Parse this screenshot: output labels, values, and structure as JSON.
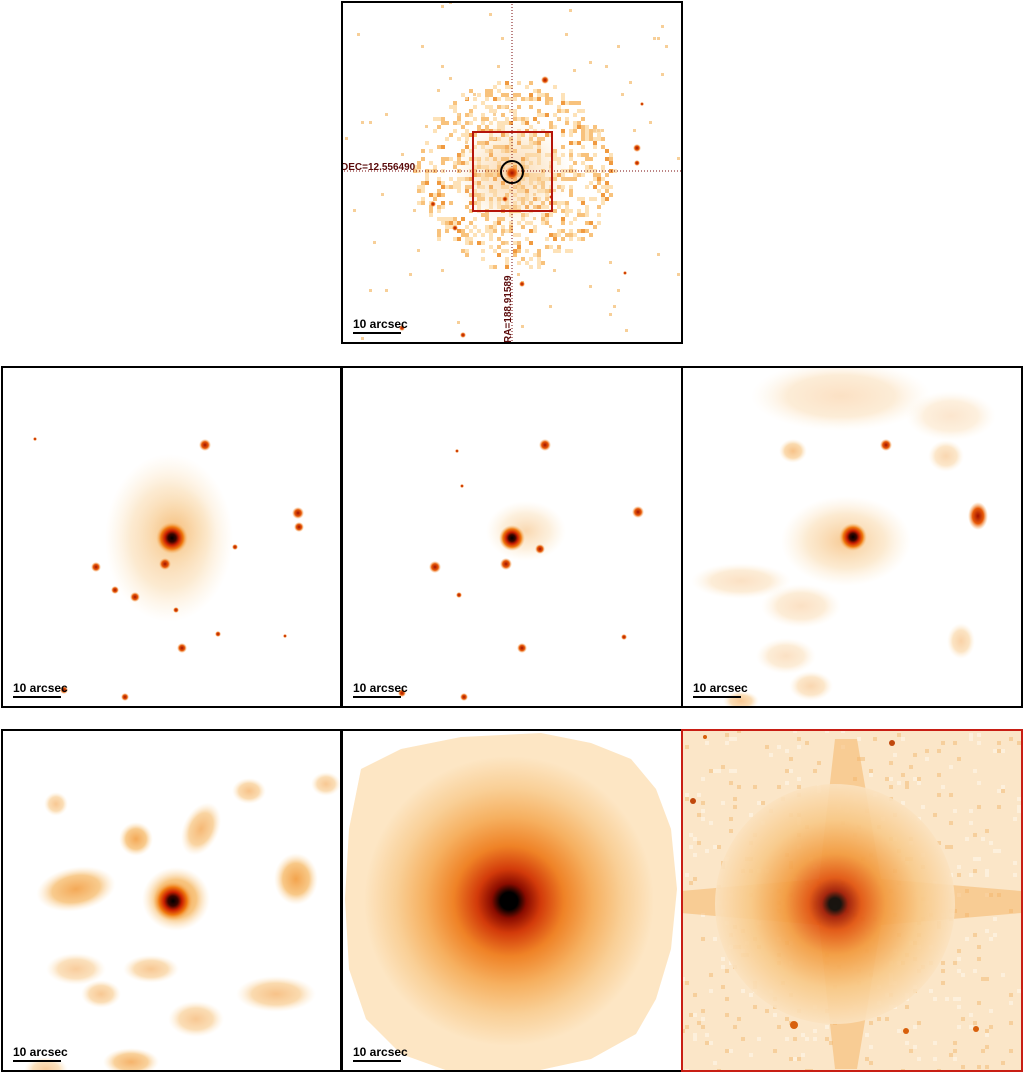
{
  "top_panel": {
    "dec_label": "DEC=12.556490",
    "ra_label": "RA=188.91589",
    "scale_label": "10 arcsec"
  },
  "row2": {
    "panels": [
      {
        "scale_label": "10 arcsec"
      },
      {
        "scale_label": "10 arcsec"
      },
      {
        "scale_label": "10 arcsec"
      }
    ]
  },
  "row3": {
    "panels": [
      {
        "scale_label": "10 arcsec"
      },
      {
        "scale_label": "10 arcsec"
      },
      {
        "scale_label": ""
      }
    ]
  },
  "colors": {
    "core": "#000000",
    "bright": "#c81e00",
    "mid": "#f07a10",
    "faint": "#f7c27a",
    "haze": "#fde6c4",
    "frame_highlight": "#c81e14"
  }
}
